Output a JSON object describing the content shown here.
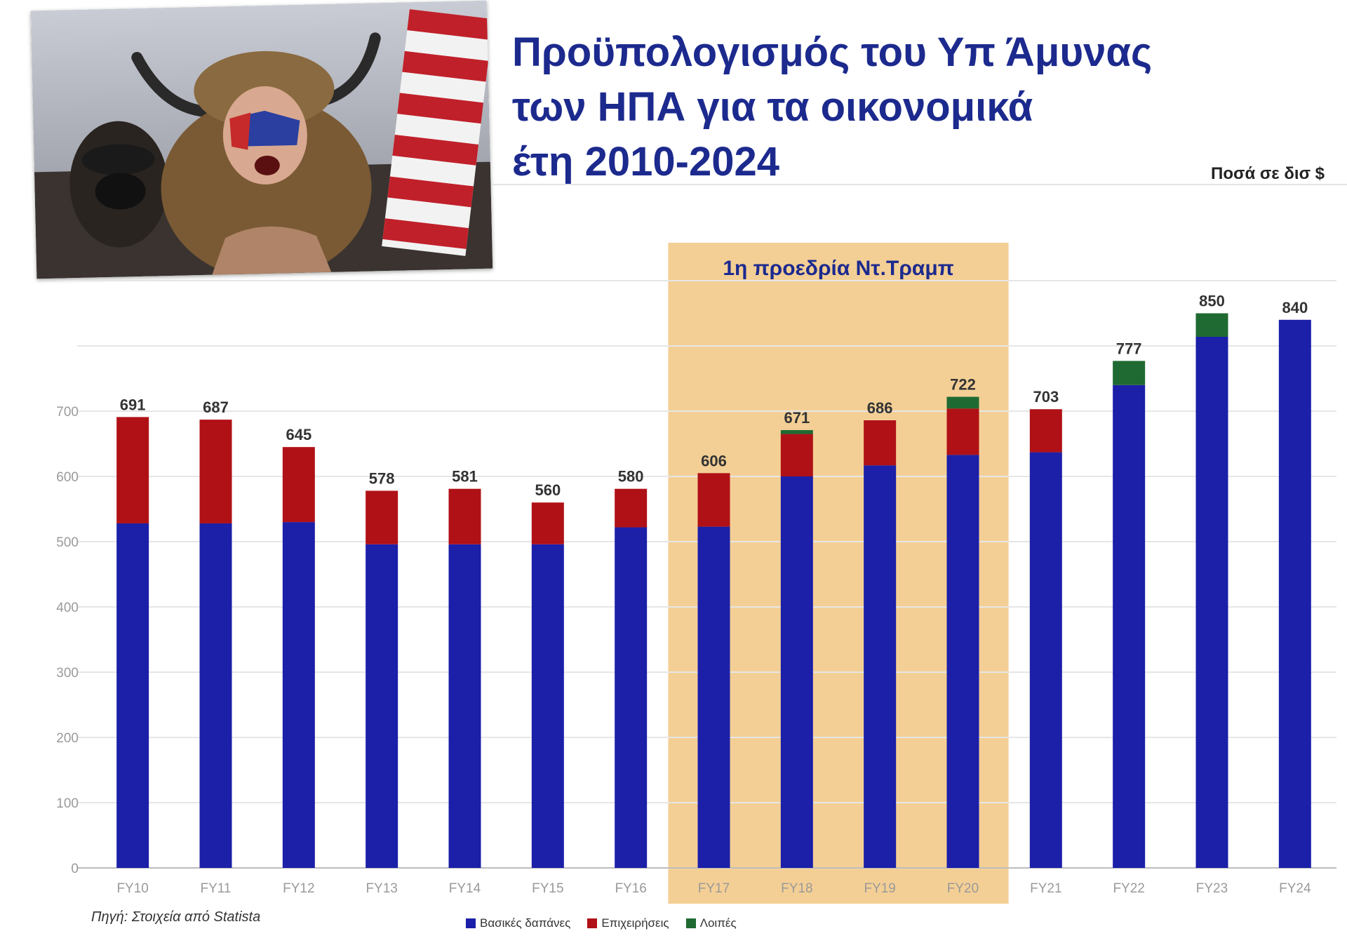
{
  "title": {
    "lines": [
      "Προϋπολογισμός του Υπ Άμυνας",
      "των ΗΠΑ για τα οικονομικά",
      "έτη 2010-2024"
    ]
  },
  "unit_label": "Ποσά σε δισ $",
  "source": "Πηγή: Στοιχεία από Statista",
  "photo": {
    "icon": "protester-with-us-flag-photo"
  },
  "chart_data": {
    "type": "bar",
    "stacked": true,
    "categories": [
      "FY10",
      "FY11",
      "FY12",
      "FY13",
      "FY14",
      "FY15",
      "FY16",
      "FY17",
      "FY18",
      "FY19",
      "FY20",
      "FY21",
      "FY22",
      "FY23",
      "FY24"
    ],
    "series": [
      {
        "name": "Βασικές δαπάνες",
        "color": "#1c1fa8",
        "values": [
          528,
          528,
          530,
          496,
          496,
          496,
          522,
          523,
          600,
          617,
          633,
          637,
          740,
          814,
          840
        ]
      },
      {
        "name": "Επιχειρήσεις",
        "color": "#b01116",
        "values": [
          163,
          159,
          115,
          82,
          85,
          64,
          59,
          82,
          65,
          69,
          71,
          66,
          0,
          0,
          0
        ]
      },
      {
        "name": "Λοιπές",
        "color": "#1f6a32",
        "values": [
          0,
          0,
          0,
          0,
          0,
          0,
          0,
          0,
          6,
          0,
          18,
          0,
          37,
          36,
          0
        ]
      }
    ],
    "totals": [
      "691",
      "687",
      "645",
      "578",
      "581",
      "560",
      "580",
      "606",
      "671",
      "686",
      "722",
      "703",
      "777",
      "850",
      "840"
    ],
    "highlight": {
      "label": "1η προεδρία Ντ.Τραμπ",
      "from": "FY17",
      "to": "FY20",
      "color": "#f4cf95"
    },
    "ylim": [
      0,
      900
    ],
    "yticks": [
      "0",
      "100",
      "200",
      "300",
      "400",
      "500",
      "600",
      "700"
    ],
    "grid": true,
    "legend_position": "bottom"
  }
}
